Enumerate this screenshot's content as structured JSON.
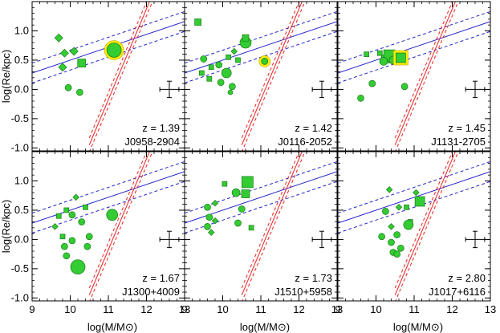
{
  "chart_data": {
    "type": "scatter",
    "layout": "grid 2 rows x 3 columns",
    "xlabel": "log(M/M⊙)",
    "ylabel": "log(Re/kpc)",
    "xlim": [
      9,
      13
    ],
    "ylim": [
      -1.05,
      1.5
    ],
    "x_ticks": [
      "9",
      "10",
      "11",
      "12",
      "13"
    ],
    "y_ticks": [
      "-1.0",
      "-0.5",
      "0.0",
      "0.5",
      "1.0"
    ],
    "colors": {
      "points": "#33cc33",
      "point_edge": "#1a7a1a",
      "highlight_ring": "#ffee00",
      "blue_line": "#2222cc",
      "red_line": "#ee2222",
      "error_bar": "#000000"
    },
    "relations": {
      "blue": {
        "slope": 0.22,
        "intercept_at_9": 0.28,
        "scatter": 0.17
      },
      "red": {
        "slope": 1.55,
        "intercept_at_10_5": -0.95,
        "scatter": 0.12
      }
    },
    "error_bar": {
      "x": 12.6,
      "y": 0.0,
      "xerr": 0.25,
      "yerr": 0.14
    },
    "panels": [
      {
        "z_label": "z = 1.39",
        "name": "J0958-2904",
        "points": [
          {
            "x": 9.7,
            "y": 0.88,
            "shape": "diamond",
            "size": 4
          },
          {
            "x": 9.85,
            "y": 0.62,
            "shape": "diamond",
            "size": 4
          },
          {
            "x": 10.1,
            "y": 0.65,
            "shape": "diamond",
            "size": 4
          },
          {
            "x": 9.8,
            "y": 0.38,
            "shape": "diamond",
            "size": 4
          },
          {
            "x": 10.3,
            "y": 0.45,
            "shape": "square",
            "size": 5
          },
          {
            "x": 9.95,
            "y": 0.03,
            "shape": "circle",
            "size": 4
          },
          {
            "x": 10.25,
            "y": -0.05,
            "shape": "circle",
            "size": 4
          },
          {
            "x": 11.15,
            "y": 0.67,
            "shape": "circle",
            "size": 9,
            "highlight": true
          }
        ]
      },
      {
        "z_label": "z = 1.42",
        "name": "J0116-2052",
        "points": [
          {
            "x": 9.35,
            "y": 1.15,
            "shape": "square",
            "size": 4
          },
          {
            "x": 9.5,
            "y": 0.52,
            "shape": "circle",
            "size": 4
          },
          {
            "x": 9.7,
            "y": 0.38,
            "shape": "square",
            "size": 3
          },
          {
            "x": 9.45,
            "y": 0.28,
            "shape": "square",
            "size": 3
          },
          {
            "x": 9.65,
            "y": 0.18,
            "shape": "square",
            "size": 3
          },
          {
            "x": 9.9,
            "y": 0.42,
            "shape": "circle",
            "size": 4
          },
          {
            "x": 10.1,
            "y": 0.28,
            "shape": "circle",
            "size": 6
          },
          {
            "x": 10.15,
            "y": 0.55,
            "shape": "square",
            "size": 3
          },
          {
            "x": 10.4,
            "y": 0.5,
            "shape": "square",
            "size": 3
          },
          {
            "x": 10.3,
            "y": 0.65,
            "shape": "diamond",
            "size": 3
          },
          {
            "x": 9.95,
            "y": 0.12,
            "shape": "circle",
            "size": 4
          },
          {
            "x": 10.25,
            "y": 0.05,
            "shape": "circle",
            "size": 4
          },
          {
            "x": 10.2,
            "y": -0.05,
            "shape": "circle",
            "size": 3
          },
          {
            "x": 10.6,
            "y": 0.8,
            "shape": "circle",
            "size": 7
          },
          {
            "x": 10.6,
            "y": 0.88,
            "shape": "square",
            "size": 4
          },
          {
            "x": 11.1,
            "y": 0.48,
            "shape": "circle",
            "size": 4,
            "highlight": true
          }
        ]
      },
      {
        "z_label": "z = 1.45",
        "name": "J1131-2705",
        "points": [
          {
            "x": 9.75,
            "y": 0.6,
            "shape": "square",
            "size": 3
          },
          {
            "x": 10.1,
            "y": 0.62,
            "shape": "square",
            "size": 3
          },
          {
            "x": 10.25,
            "y": 0.52,
            "shape": "square",
            "size": 5
          },
          {
            "x": 10.35,
            "y": 0.58,
            "shape": "square",
            "size": 7
          },
          {
            "x": 10.2,
            "y": 0.48,
            "shape": "circle",
            "size": 5
          },
          {
            "x": 10.45,
            "y": 0.5,
            "shape": "circle",
            "size": 5
          },
          {
            "x": 9.9,
            "y": 0.1,
            "shape": "circle",
            "size": 4
          },
          {
            "x": 9.6,
            "y": -0.15,
            "shape": "circle",
            "size": 4
          },
          {
            "x": 10.75,
            "y": 0.05,
            "shape": "circle",
            "size": 4
          },
          {
            "x": 10.65,
            "y": 0.54,
            "shape": "square",
            "size": 6,
            "highlight": true
          }
        ]
      },
      {
        "z_label": "z = 1.67",
        "name": "J1300+4009",
        "points": [
          {
            "x": 10.15,
            "y": 0.72,
            "shape": "diamond",
            "size": 3
          },
          {
            "x": 10.4,
            "y": 0.55,
            "shape": "square",
            "size": 3
          },
          {
            "x": 9.9,
            "y": 0.5,
            "shape": "square",
            "size": 3
          },
          {
            "x": 9.7,
            "y": 0.4,
            "shape": "square",
            "size": 3
          },
          {
            "x": 10.05,
            "y": 0.42,
            "shape": "circle",
            "size": 4
          },
          {
            "x": 10.3,
            "y": 0.3,
            "shape": "circle",
            "size": 4
          },
          {
            "x": 9.6,
            "y": 0.22,
            "shape": "diamond",
            "size": 3
          },
          {
            "x": 9.8,
            "y": 0.05,
            "shape": "square",
            "size": 3
          },
          {
            "x": 10.5,
            "y": 0.05,
            "shape": "circle",
            "size": 4
          },
          {
            "x": 10.05,
            "y": -0.02,
            "shape": "circle",
            "size": 4
          },
          {
            "x": 9.85,
            "y": -0.12,
            "shape": "circle",
            "size": 4
          },
          {
            "x": 10.45,
            "y": -0.12,
            "shape": "circle",
            "size": 4
          },
          {
            "x": 9.9,
            "y": -0.28,
            "shape": "circle",
            "size": 4
          },
          {
            "x": 11.1,
            "y": 0.42,
            "shape": "circle",
            "size": 7
          },
          {
            "x": 10.2,
            "y": -0.47,
            "shape": "circle",
            "size": 9
          }
        ]
      },
      {
        "z_label": "z = 1.73",
        "name": "J1510+5958",
        "points": [
          {
            "x": 10.05,
            "y": 0.95,
            "shape": "square",
            "size": 3
          },
          {
            "x": 9.8,
            "y": 0.62,
            "shape": "diamond",
            "size": 3
          },
          {
            "x": 10.35,
            "y": 0.8,
            "shape": "circle",
            "size": 5
          },
          {
            "x": 10.6,
            "y": 0.78,
            "shape": "square",
            "size": 5
          },
          {
            "x": 10.65,
            "y": 0.98,
            "shape": "square",
            "size": 7
          },
          {
            "x": 9.6,
            "y": 0.55,
            "shape": "circle",
            "size": 4
          },
          {
            "x": 10.5,
            "y": 0.52,
            "shape": "circle",
            "size": 4
          },
          {
            "x": 9.65,
            "y": 0.38,
            "shape": "circle",
            "size": 4
          },
          {
            "x": 9.6,
            "y": 0.22,
            "shape": "circle",
            "size": 4
          },
          {
            "x": 9.8,
            "y": 0.32,
            "shape": "diamond",
            "size": 3
          },
          {
            "x": 9.7,
            "y": 0.12,
            "shape": "diamond",
            "size": 3
          },
          {
            "x": 10.4,
            "y": 0.28,
            "shape": "circle",
            "size": 4
          },
          {
            "x": 10.75,
            "y": 0.2,
            "shape": "square",
            "size": 3
          }
        ]
      },
      {
        "z_label": "z = 2.80",
        "name": "J1017+6116",
        "points": [
          {
            "x": 10.35,
            "y": 0.85,
            "shape": "diamond",
            "size": 3
          },
          {
            "x": 10.8,
            "y": 0.55,
            "shape": "square",
            "size": 3
          },
          {
            "x": 10.6,
            "y": 0.55,
            "shape": "diamond",
            "size": 3
          },
          {
            "x": 11.05,
            "y": 0.8,
            "shape": "diamond",
            "size": 3
          },
          {
            "x": 10.25,
            "y": 0.48,
            "shape": "circle",
            "size": 4
          },
          {
            "x": 10.9,
            "y": 0.3,
            "shape": "square",
            "size": 3
          },
          {
            "x": 11.15,
            "y": 0.65,
            "shape": "square",
            "size": 6
          },
          {
            "x": 10.4,
            "y": 0.22,
            "shape": "diamond",
            "size": 3
          },
          {
            "x": 10.15,
            "y": 0.05,
            "shape": "circle",
            "size": 4
          },
          {
            "x": 10.55,
            "y": 0.08,
            "shape": "circle",
            "size": 4
          },
          {
            "x": 10.4,
            "y": -0.05,
            "shape": "circle",
            "size": 4
          },
          {
            "x": 10.65,
            "y": -0.15,
            "shape": "circle",
            "size": 4
          },
          {
            "x": 10.85,
            "y": 0.25,
            "shape": "circle",
            "size": 6
          },
          {
            "x": 10.45,
            "y": -0.22,
            "shape": "circle",
            "size": 4
          },
          {
            "x": 10.55,
            "y": -0.25,
            "shape": "circle",
            "size": 4
          }
        ]
      }
    ]
  }
}
